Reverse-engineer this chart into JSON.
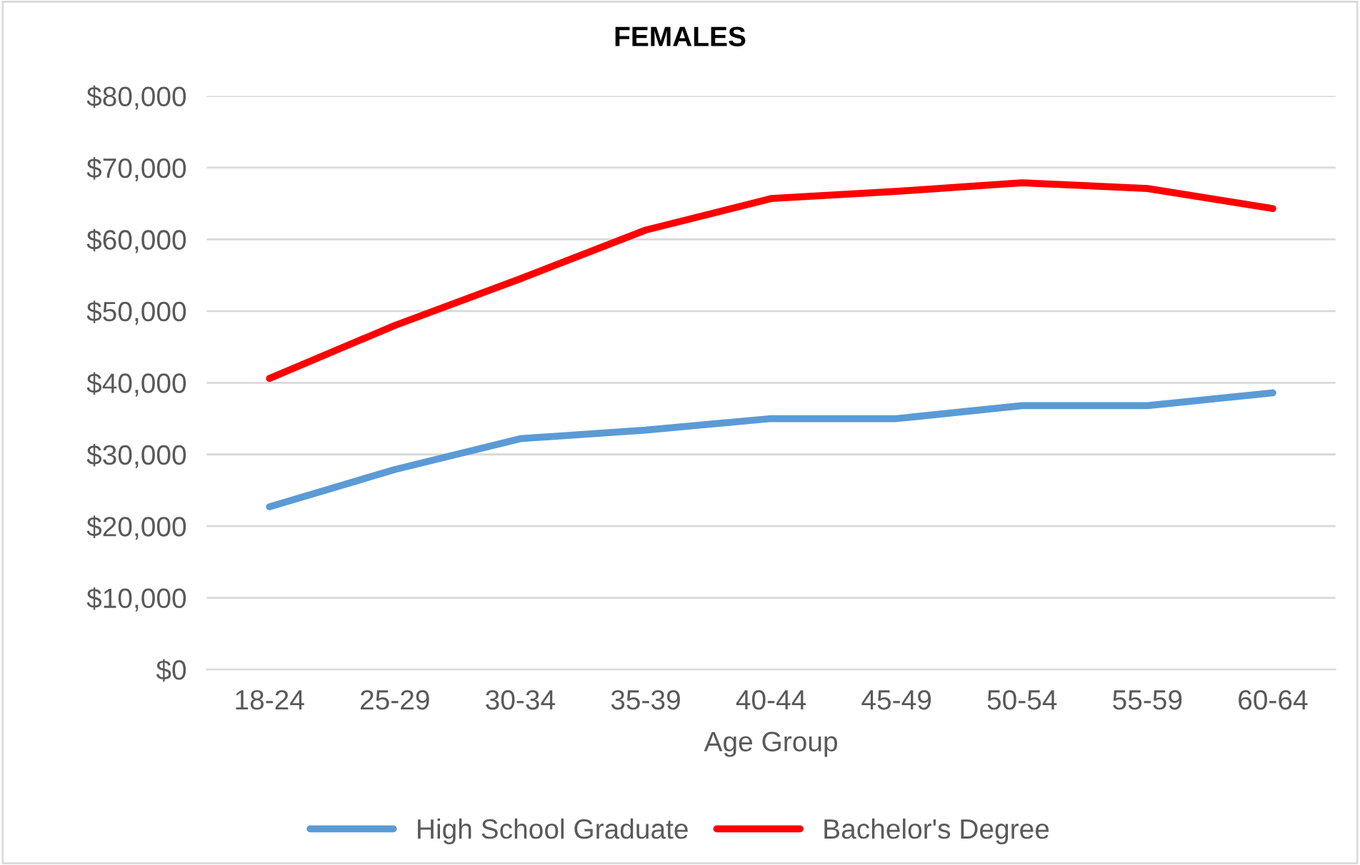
{
  "chart_data": {
    "type": "line",
    "title": "FEMALES",
    "xlabel": "Age Group",
    "categories": [
      "18-24",
      "25-29",
      "30-34",
      "35-39",
      "40-44",
      "45-49",
      "50-54",
      "55-59",
      "60-64"
    ],
    "series": [
      {
        "name": "High School Graduate",
        "color": "#5b9bd5",
        "values": [
          22700,
          27900,
          32200,
          33400,
          35000,
          35000,
          36800,
          36800,
          38600
        ]
      },
      {
        "name": "Bachelor's Degree",
        "color": "#ff0000",
        "values": [
          40600,
          48000,
          54500,
          61300,
          65700,
          66700,
          67900,
          67100,
          64300
        ]
      }
    ],
    "ylim": [
      0,
      80000
    ],
    "yticks": [
      {
        "value": 0,
        "label": "$0"
      },
      {
        "value": 10000,
        "label": "$10,000"
      },
      {
        "value": 20000,
        "label": "$20,000"
      },
      {
        "value": 30000,
        "label": "$30,000"
      },
      {
        "value": 40000,
        "label": "$40,000"
      },
      {
        "value": 50000,
        "label": "$50,000"
      },
      {
        "value": 60000,
        "label": "$60,000"
      },
      {
        "value": 70000,
        "label": "$70,000"
      },
      {
        "value": 80000,
        "label": "$80,000"
      }
    ],
    "grid": "y",
    "legend": "bottom",
    "marker": "none",
    "line_style": "solid"
  }
}
